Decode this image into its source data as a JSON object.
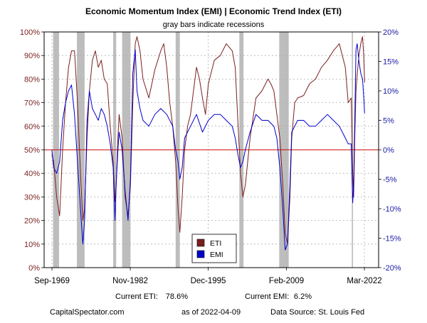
{
  "chart_data": {
    "type": "line",
    "title": "Economic Momentum Index (EMI) | Economic Trend Index (ETI)",
    "subtitle": "gray bars indicate recessions",
    "x_tick_labels": [
      "Sep-1969",
      "Nov-1982",
      "Dec-1995",
      "Feb-2009",
      "Mar-2022"
    ],
    "xlim": [
      1969.5,
      2022.5
    ],
    "left_axis": {
      "series": "ETI",
      "ylim": [
        0,
        100
      ],
      "ticks": [
        0,
        10,
        20,
        30,
        40,
        50,
        60,
        70,
        80,
        90,
        100
      ],
      "tick_labels": [
        "0%",
        "10%",
        "20%",
        "30%",
        "40%",
        "50%",
        "60%",
        "70%",
        "80%",
        "90%",
        "100%"
      ]
    },
    "right_axis": {
      "series": "EMI",
      "ylim": [
        -20,
        20
      ],
      "ticks": [
        -20,
        -15,
        -10,
        -5,
        0,
        5,
        10,
        15,
        20
      ],
      "tick_labels": [
        "-20%",
        "-15%",
        "-10%",
        "-5%",
        "0%",
        "5%",
        "10%",
        "15%",
        "20%"
      ]
    },
    "reference_line": {
      "value": 50,
      "axis": "left",
      "color": "#cc0000"
    },
    "recessions": [
      [
        1969.9,
        1970.9
      ],
      [
        1973.9,
        1975.2
      ],
      [
        1980.0,
        1980.5
      ],
      [
        1981.5,
        1982.9
      ],
      [
        1990.5,
        1991.2
      ],
      [
        2001.2,
        2001.9
      ],
      [
        2007.9,
        2009.5
      ],
      [
        2020.1,
        2020.3
      ]
    ],
    "legend": {
      "placement": "bottom-center",
      "entries": [
        "ETI",
        "EMI"
      ]
    },
    "grid": true,
    "series": [
      {
        "name": "ETI",
        "axis": "left",
        "color": "#7a1f1f",
        "x": [
          1969.7,
          1970.0,
          1970.5,
          1971.0,
          1971.5,
          1972.0,
          1972.5,
          1973.0,
          1973.5,
          1974.0,
          1974.5,
          1974.9,
          1975.2,
          1975.6,
          1976.0,
          1976.5,
          1977.0,
          1977.5,
          1978.0,
          1978.5,
          1979.0,
          1979.5,
          1980.0,
          1980.3,
          1980.5,
          1980.8,
          1981.0,
          1981.5,
          1982.0,
          1982.5,
          1982.9,
          1983.3,
          1983.7,
          1984.0,
          1984.5,
          1985.0,
          1986.0,
          1987.0,
          1988.0,
          1988.5,
          1989.0,
          1989.5,
          1990.0,
          1990.5,
          1990.9,
          1991.2,
          1991.6,
          1992.0,
          1992.5,
          1993.0,
          1994.0,
          1994.5,
          1995.0,
          1995.5,
          1996.0,
          1997.0,
          1998.0,
          1999.0,
          2000.0,
          2000.5,
          2001.0,
          2001.4,
          2001.8,
          2002.2,
          2003.0,
          2004.0,
          2005.0,
          2006.0,
          2006.5,
          2007.0,
          2007.5,
          2008.0,
          2008.5,
          2008.9,
          2009.3,
          2009.7,
          2010.0,
          2010.5,
          2011.0,
          2012.0,
          2013.0,
          2014.0,
          2015.0,
          2016.0,
          2017.0,
          2018.0,
          2019.0,
          2019.5,
          2020.0,
          2020.25,
          2020.4,
          2020.6,
          2020.8,
          2021.0,
          2021.3,
          2021.6,
          2021.9,
          2022.1,
          2022.25
        ],
        "values": [
          48,
          45,
          30,
          22,
          50,
          70,
          85,
          92,
          92,
          70,
          40,
          20,
          25,
          55,
          75,
          88,
          92,
          85,
          88,
          80,
          78,
          60,
          45,
          28,
          35,
          55,
          65,
          55,
          30,
          22,
          35,
          70,
          95,
          98,
          92,
          80,
          72,
          84,
          92,
          95,
          85,
          70,
          60,
          45,
          25,
          15,
          30,
          50,
          60,
          65,
          85,
          80,
          72,
          65,
          78,
          88,
          90,
          95,
          92,
          85,
          60,
          40,
          30,
          35,
          55,
          72,
          75,
          80,
          78,
          75,
          65,
          55,
          35,
          15,
          10,
          30,
          55,
          70,
          72,
          73,
          78,
          80,
          85,
          88,
          92,
          95,
          85,
          70,
          72,
          40,
          30,
          55,
          75,
          82,
          90,
          95,
          98,
          90,
          78.6
        ]
      },
      {
        "name": "EMI",
        "axis": "right",
        "color": "#0000cc",
        "x": [
          1969.7,
          1970.0,
          1970.5,
          1971.0,
          1971.5,
          1972.0,
          1972.5,
          1973.0,
          1973.5,
          1974.0,
          1974.5,
          1974.9,
          1975.2,
          1975.6,
          1976.0,
          1976.5,
          1977.0,
          1977.5,
          1978.0,
          1978.5,
          1979.0,
          1979.5,
          1980.0,
          1980.3,
          1980.5,
          1980.8,
          1981.0,
          1981.5,
          1982.0,
          1982.5,
          1982.9,
          1983.3,
          1983.7,
          1984.0,
          1984.5,
          1985.0,
          1986.0,
          1987.0,
          1988.0,
          1989.0,
          1990.0,
          1990.5,
          1990.9,
          1991.2,
          1991.6,
          1992.0,
          1993.0,
          1994.0,
          1995.0,
          1996.0,
          1997.0,
          1998.0,
          1999.0,
          2000.0,
          2000.5,
          2001.0,
          2001.4,
          2001.8,
          2002.2,
          2003.0,
          2004.0,
          2005.0,
          2006.0,
          2007.0,
          2007.5,
          2008.0,
          2008.5,
          2008.9,
          2009.3,
          2009.7,
          2010.0,
          2010.5,
          2011.0,
          2012.0,
          2013.0,
          2014.0,
          2015.0,
          2016.0,
          2017.0,
          2018.0,
          2019.0,
          2019.5,
          2020.0,
          2020.25,
          2020.4,
          2020.6,
          2020.8,
          2021.0,
          2021.3,
          2021.6,
          2021.9,
          2022.1,
          2022.25
        ],
        "values": [
          0,
          -3,
          -4,
          -2,
          5,
          8,
          10,
          11,
          6,
          -2,
          -10,
          -16,
          -12,
          5,
          10,
          7,
          6,
          5,
          7,
          6,
          4,
          1,
          -3,
          -12,
          -6,
          0,
          3,
          0,
          -7,
          -12,
          -5,
          13,
          17,
          10,
          7,
          5,
          4,
          6,
          7,
          6,
          4,
          0,
          -2,
          -5,
          -3,
          2,
          4,
          6,
          3,
          5,
          6,
          6,
          5,
          4,
          2,
          -1,
          -3,
          -2,
          0,
          3,
          6,
          5,
          5,
          4,
          2,
          -3,
          -10,
          -17,
          -16,
          -6,
          3,
          4,
          5,
          5,
          4,
          4,
          5,
          6,
          5,
          4,
          2,
          1,
          1,
          -9,
          -6,
          5,
          17,
          18,
          15,
          13,
          12,
          9,
          6.2
        ]
      }
    ],
    "annotations": {
      "current_eti_label": "Current ETI:",
      "current_eti_value": "78.6%",
      "current_emi_label": "Current EMI:",
      "current_emi_value": "6.2%"
    }
  },
  "footer": {
    "source_site": "CapitalSpectator.com",
    "as_of": "as of 2022-04-09",
    "data_source": "Data Source: St. Louis Fed"
  },
  "colors": {
    "eti": "#7a1f1f",
    "emi": "#0000cc",
    "recession": "#bdbdbd",
    "reference": "#cc0000"
  }
}
